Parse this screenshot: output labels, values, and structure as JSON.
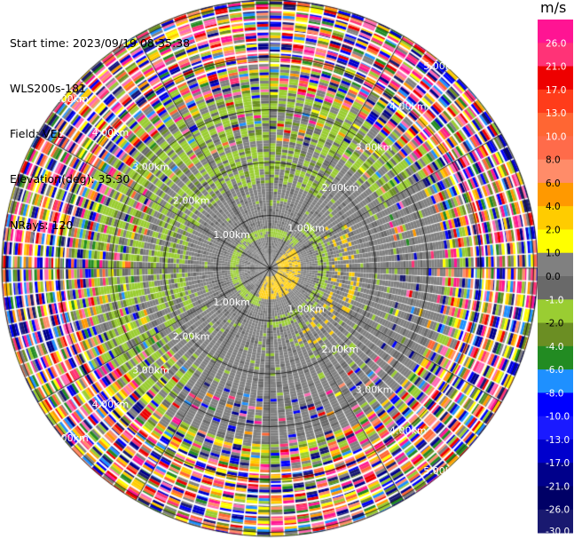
{
  "info": {
    "start_time": "Start time: 2023/09/19 08:35:38",
    "instrument": "WLS200s-181",
    "field": "Field: VEL",
    "elevation": "Elevation(deg): 35.30",
    "nrays": "NRays: 120"
  },
  "chart_data": {
    "type": "heatmap",
    "title": "",
    "field": "VEL",
    "units": "m/s",
    "projection": "polar",
    "nrays": 120,
    "ring_labels": [
      "1.00km",
      "2.00km",
      "3.00km",
      "4.00km",
      "5.00km"
    ],
    "ring_ranges_km": [
      1,
      2,
      3,
      4,
      5
    ],
    "grid": true,
    "colorbar": {
      "label": "m/s",
      "placement": "right",
      "ticks": [
        "26.0",
        "21.0",
        "17.0",
        "13.0",
        "10.0",
        "8.0",
        "6.0",
        "4.0",
        "2.0",
        "1.0",
        "0.0",
        "-1.0",
        "-2.0",
        "-4.0",
        "-6.0",
        "-8.0",
        "-10.0",
        "-13.0",
        "-17.0",
        "-21.0",
        "-26.0",
        "-30.0"
      ],
      "bands": [
        {
          "min": 26,
          "max": 30,
          "color": "#ff1493"
        },
        {
          "min": 21,
          "max": 26,
          "color": "#ff3377"
        },
        {
          "min": 17,
          "max": 21,
          "color": "#ee0000"
        },
        {
          "min": 13,
          "max": 17,
          "color": "#ff3c1a"
        },
        {
          "min": 10,
          "max": 13,
          "color": "#ff6633"
        },
        {
          "min": 8,
          "max": 10,
          "color": "#ff6b4a"
        },
        {
          "min": 6,
          "max": 8,
          "color": "#ff8c69"
        },
        {
          "min": 4,
          "max": 6,
          "color": "#ff9900"
        },
        {
          "min": 2,
          "max": 4,
          "color": "#ffcc00"
        },
        {
          "min": 1,
          "max": 2,
          "color": "#ffff00"
        },
        {
          "min": 0,
          "max": 1,
          "color": "#808080"
        },
        {
          "min": -1,
          "max": 0,
          "color": "#696969"
        },
        {
          "min": -2,
          "max": -1,
          "color": "#9acd32"
        },
        {
          "min": -4,
          "max": -2,
          "color": "#6b8e23"
        },
        {
          "min": -6,
          "max": -4,
          "color": "#228b22"
        },
        {
          "min": -8,
          "max": -6,
          "color": "#1e90ff"
        },
        {
          "min": -10,
          "max": -8,
          "color": "#0000ff"
        },
        {
          "min": -13,
          "max": -10,
          "color": "#1a1aff"
        },
        {
          "min": -17,
          "max": -13,
          "color": "#0000cd"
        },
        {
          "min": -21,
          "max": -17,
          "color": "#00008b"
        },
        {
          "min": -26,
          "max": -21,
          "color": "#000066"
        },
        {
          "min": -30,
          "max": -26,
          "color": "#191970"
        }
      ]
    }
  }
}
